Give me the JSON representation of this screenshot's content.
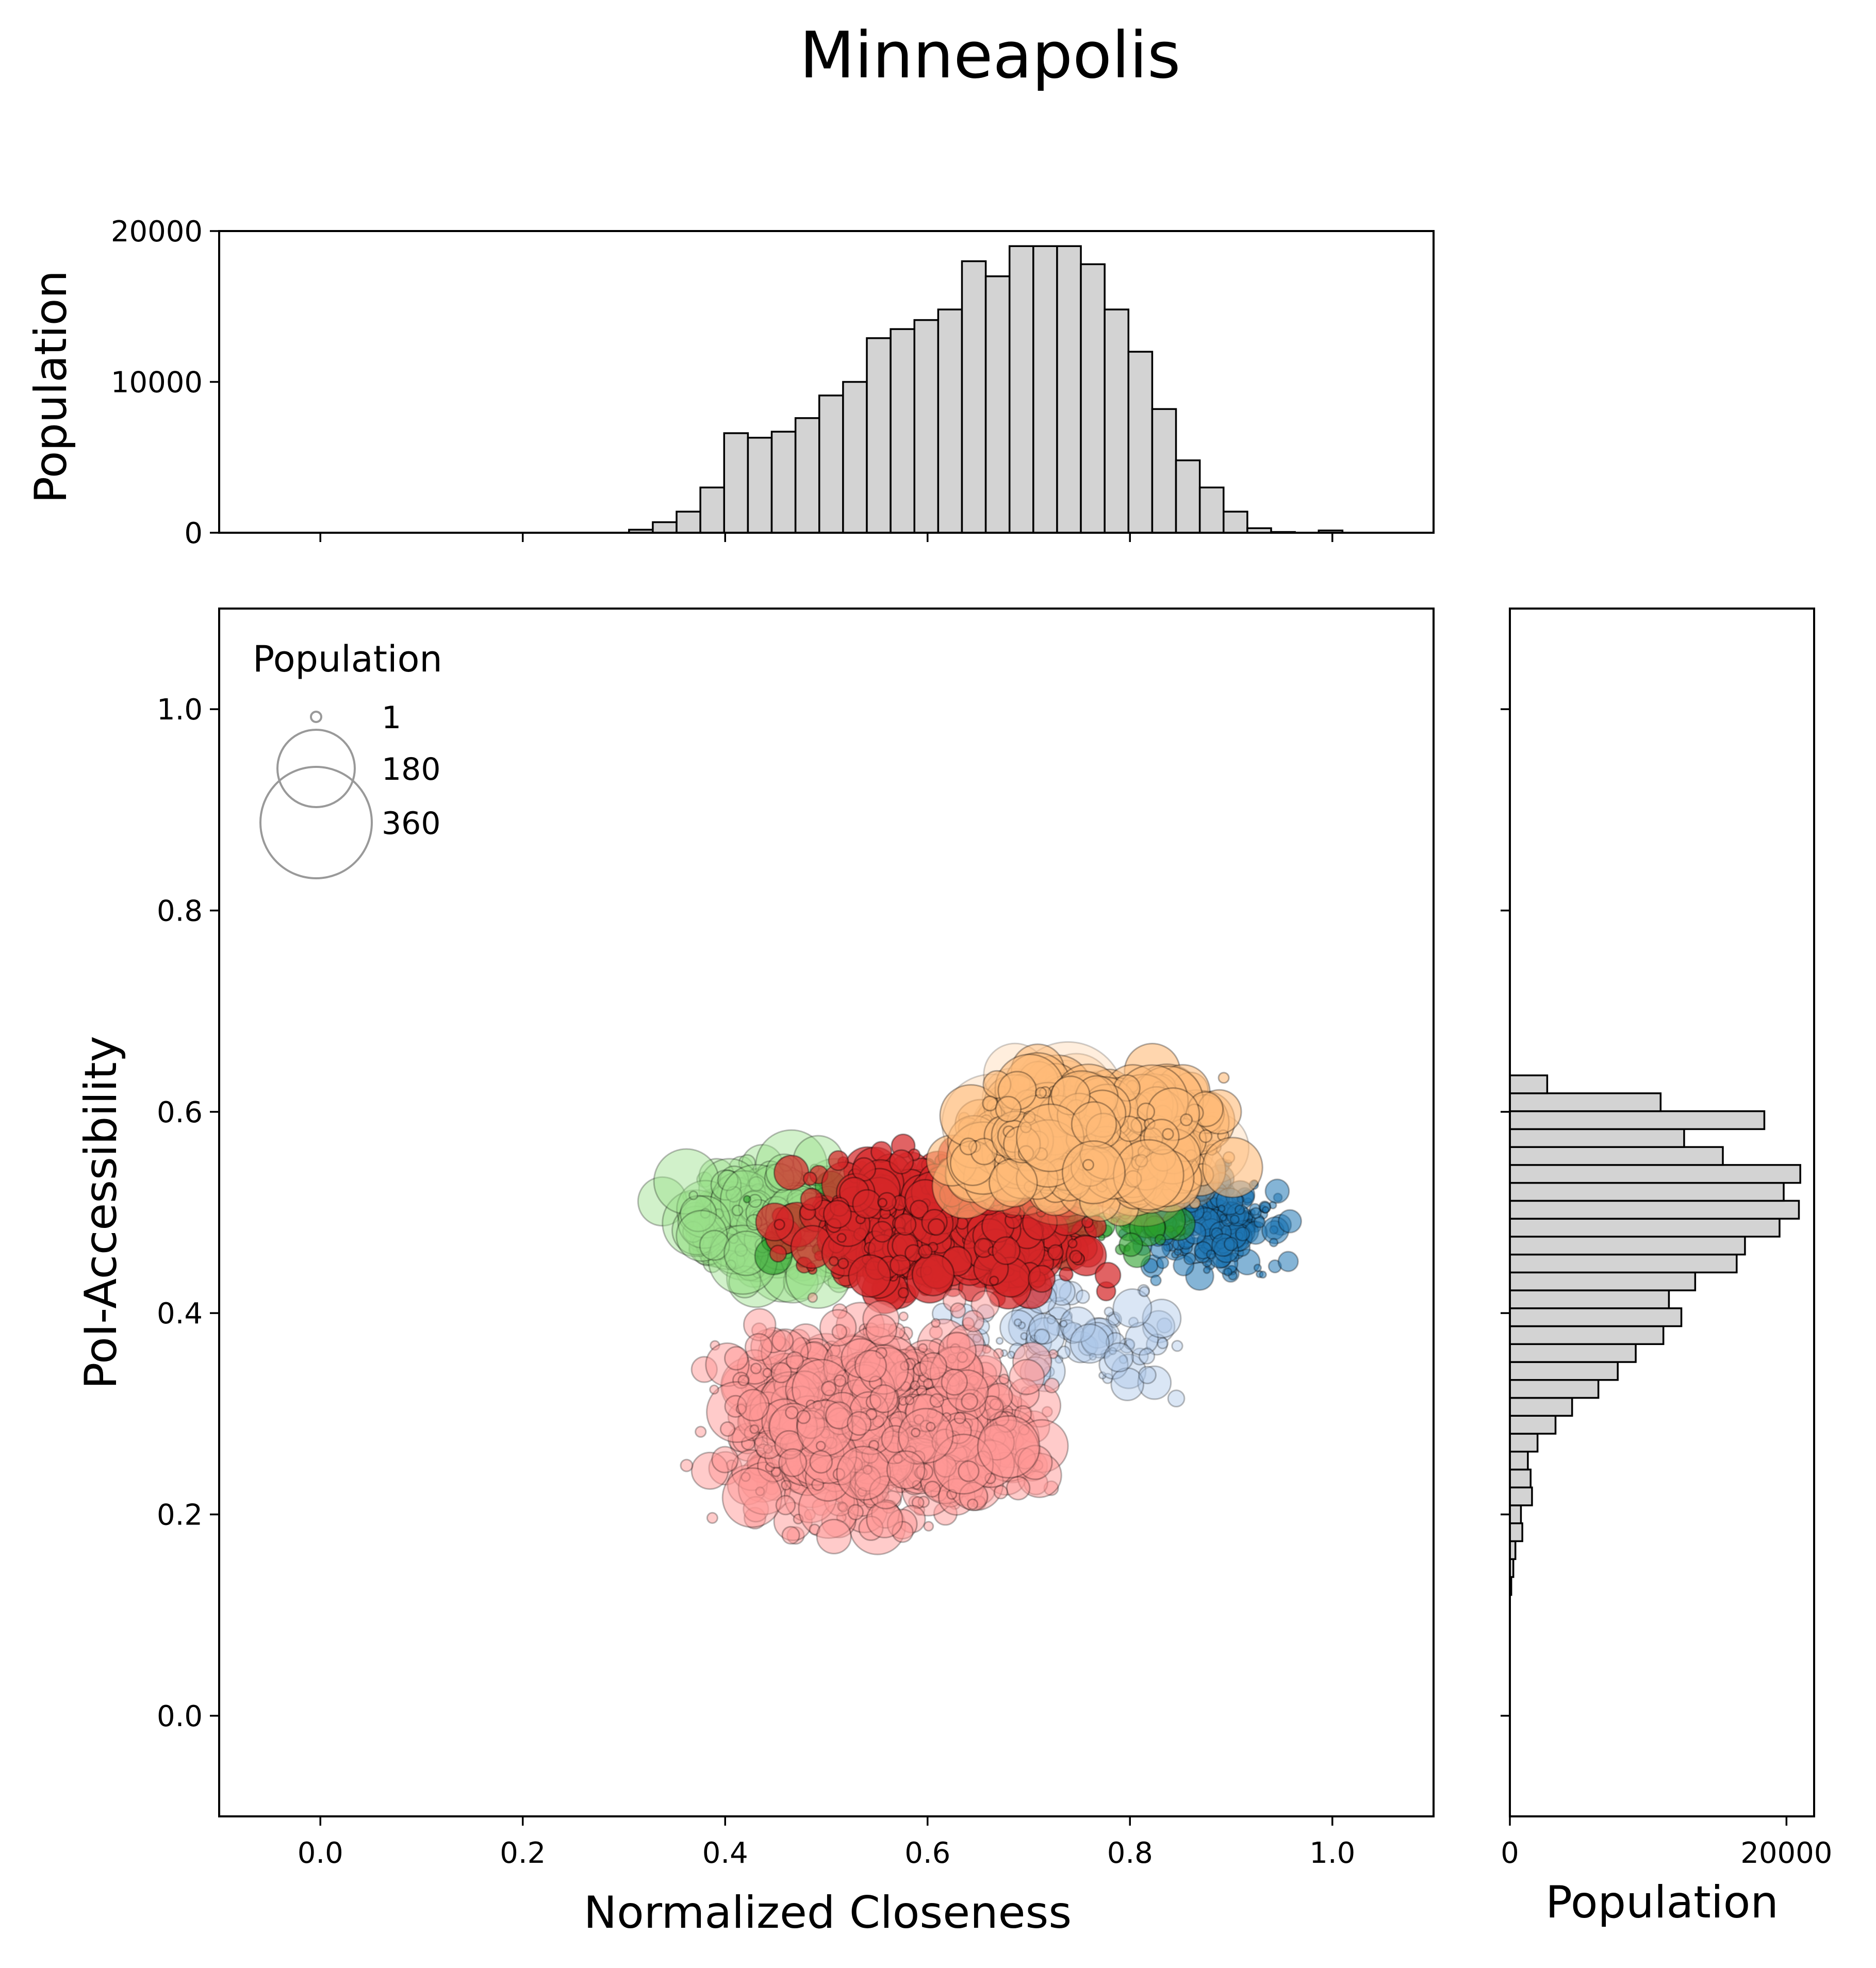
{
  "chart_data": {
    "type": "scatter",
    "title": "Minneapolis",
    "main": {
      "xlabel": "Normalized Closeness",
      "ylabel": "PoI-Accessibility",
      "xlim": [
        -0.1,
        1.1
      ],
      "ylim": [
        -0.1,
        1.1
      ],
      "xticks": [
        0.0,
        0.2,
        0.4,
        0.6,
        0.8,
        1.0
      ],
      "xtick_labels": [
        "0.0",
        "0.2",
        "0.4",
        "0.6",
        "0.8",
        "1.0"
      ],
      "yticks": [
        0.0,
        0.2,
        0.4,
        0.6,
        0.8,
        1.0
      ],
      "ytick_labels": [
        "0.0",
        "0.2",
        "0.4",
        "0.6",
        "0.8",
        "1.0"
      ],
      "grid": false,
      "marker_size_encodes": "population",
      "size_legend": {
        "title": "Population",
        "placement": "upper-left",
        "entries": [
          {
            "label": "1",
            "value": 1
          },
          {
            "label": "180",
            "value": 180
          },
          {
            "label": "360",
            "value": 360
          }
        ]
      },
      "clusters": [
        {
          "color": "#1f77b4",
          "alpha": 0.55,
          "count": 260,
          "xmin": 0.78,
          "xmax": 0.98,
          "ymin": 0.42,
          "ymax": 0.56,
          "smin": 6,
          "smax": 28
        },
        {
          "color": "#aec7e8",
          "alpha": 0.45,
          "count": 90,
          "xmin": 0.55,
          "xmax": 0.9,
          "ymin": 0.3,
          "ymax": 0.46,
          "smin": 6,
          "smax": 40
        },
        {
          "color": "#98df8a",
          "alpha": 0.45,
          "count": 360,
          "xmin": 0.32,
          "xmax": 0.56,
          "ymin": 0.42,
          "ymax": 0.56,
          "smin": 8,
          "smax": 70
        },
        {
          "color": "#2ca02c",
          "alpha": 0.6,
          "count": 260,
          "xmin": 0.38,
          "xmax": 0.9,
          "ymin": 0.44,
          "ymax": 0.53,
          "smin": 6,
          "smax": 40
        },
        {
          "color": "#d62728",
          "alpha": 0.72,
          "count": 950,
          "xmin": 0.44,
          "xmax": 0.8,
          "ymin": 0.4,
          "ymax": 0.58,
          "smin": 8,
          "smax": 46
        },
        {
          "color": "#ff9896",
          "alpha": 0.5,
          "count": 950,
          "xmin": 0.34,
          "xmax": 0.76,
          "ymin": 0.16,
          "ymax": 0.42,
          "smin": 8,
          "smax": 60
        },
        {
          "color": "#ffbb78",
          "alpha": 0.25,
          "count": 120,
          "xmin": 0.6,
          "xmax": 0.92,
          "ymin": 0.5,
          "ymax": 0.65,
          "smin": 20,
          "smax": 110
        },
        {
          "color": "#ffbb78",
          "alpha": 0.6,
          "count": 800,
          "xmin": 0.6,
          "xmax": 0.92,
          "ymin": 0.5,
          "ymax": 0.65,
          "smin": 10,
          "smax": 70
        }
      ]
    },
    "top_histogram": {
      "ylabel": "Population",
      "ylim": [
        0,
        20000
      ],
      "yticks": [
        0,
        10000,
        20000
      ],
      "ytick_labels": [
        "0",
        "10000",
        "20000"
      ],
      "bin_start": 0.305,
      "bin_width": 0.0235,
      "values": [
        200,
        700,
        1400,
        3000,
        6600,
        6300,
        6700,
        7600,
        9100,
        10000,
        12900,
        13500,
        14100,
        14800,
        18000,
        17000,
        19000,
        19000,
        19000,
        17800,
        14800,
        12000,
        8200,
        4800,
        3000,
        1400,
        300,
        50,
        0,
        150
      ]
    },
    "right_histogram": {
      "xlabel": "Population",
      "xlim": [
        0,
        22000
      ],
      "xticks": [
        0,
        20000
      ],
      "xtick_labels": [
        "0",
        "20000"
      ],
      "yticks": [
        0.0,
        0.2,
        0.4,
        0.6,
        0.8,
        1.0
      ],
      "bin_start": 0.12,
      "bin_width": 0.0178,
      "values": [
        100,
        250,
        400,
        900,
        800,
        1600,
        1500,
        1300,
        2000,
        3300,
        4500,
        6400,
        7800,
        9100,
        11100,
        12400,
        11500,
        13400,
        16400,
        17000,
        19500,
        20900,
        19800,
        21000,
        15400,
        12600,
        18400,
        10900,
        2700
      ]
    }
  }
}
